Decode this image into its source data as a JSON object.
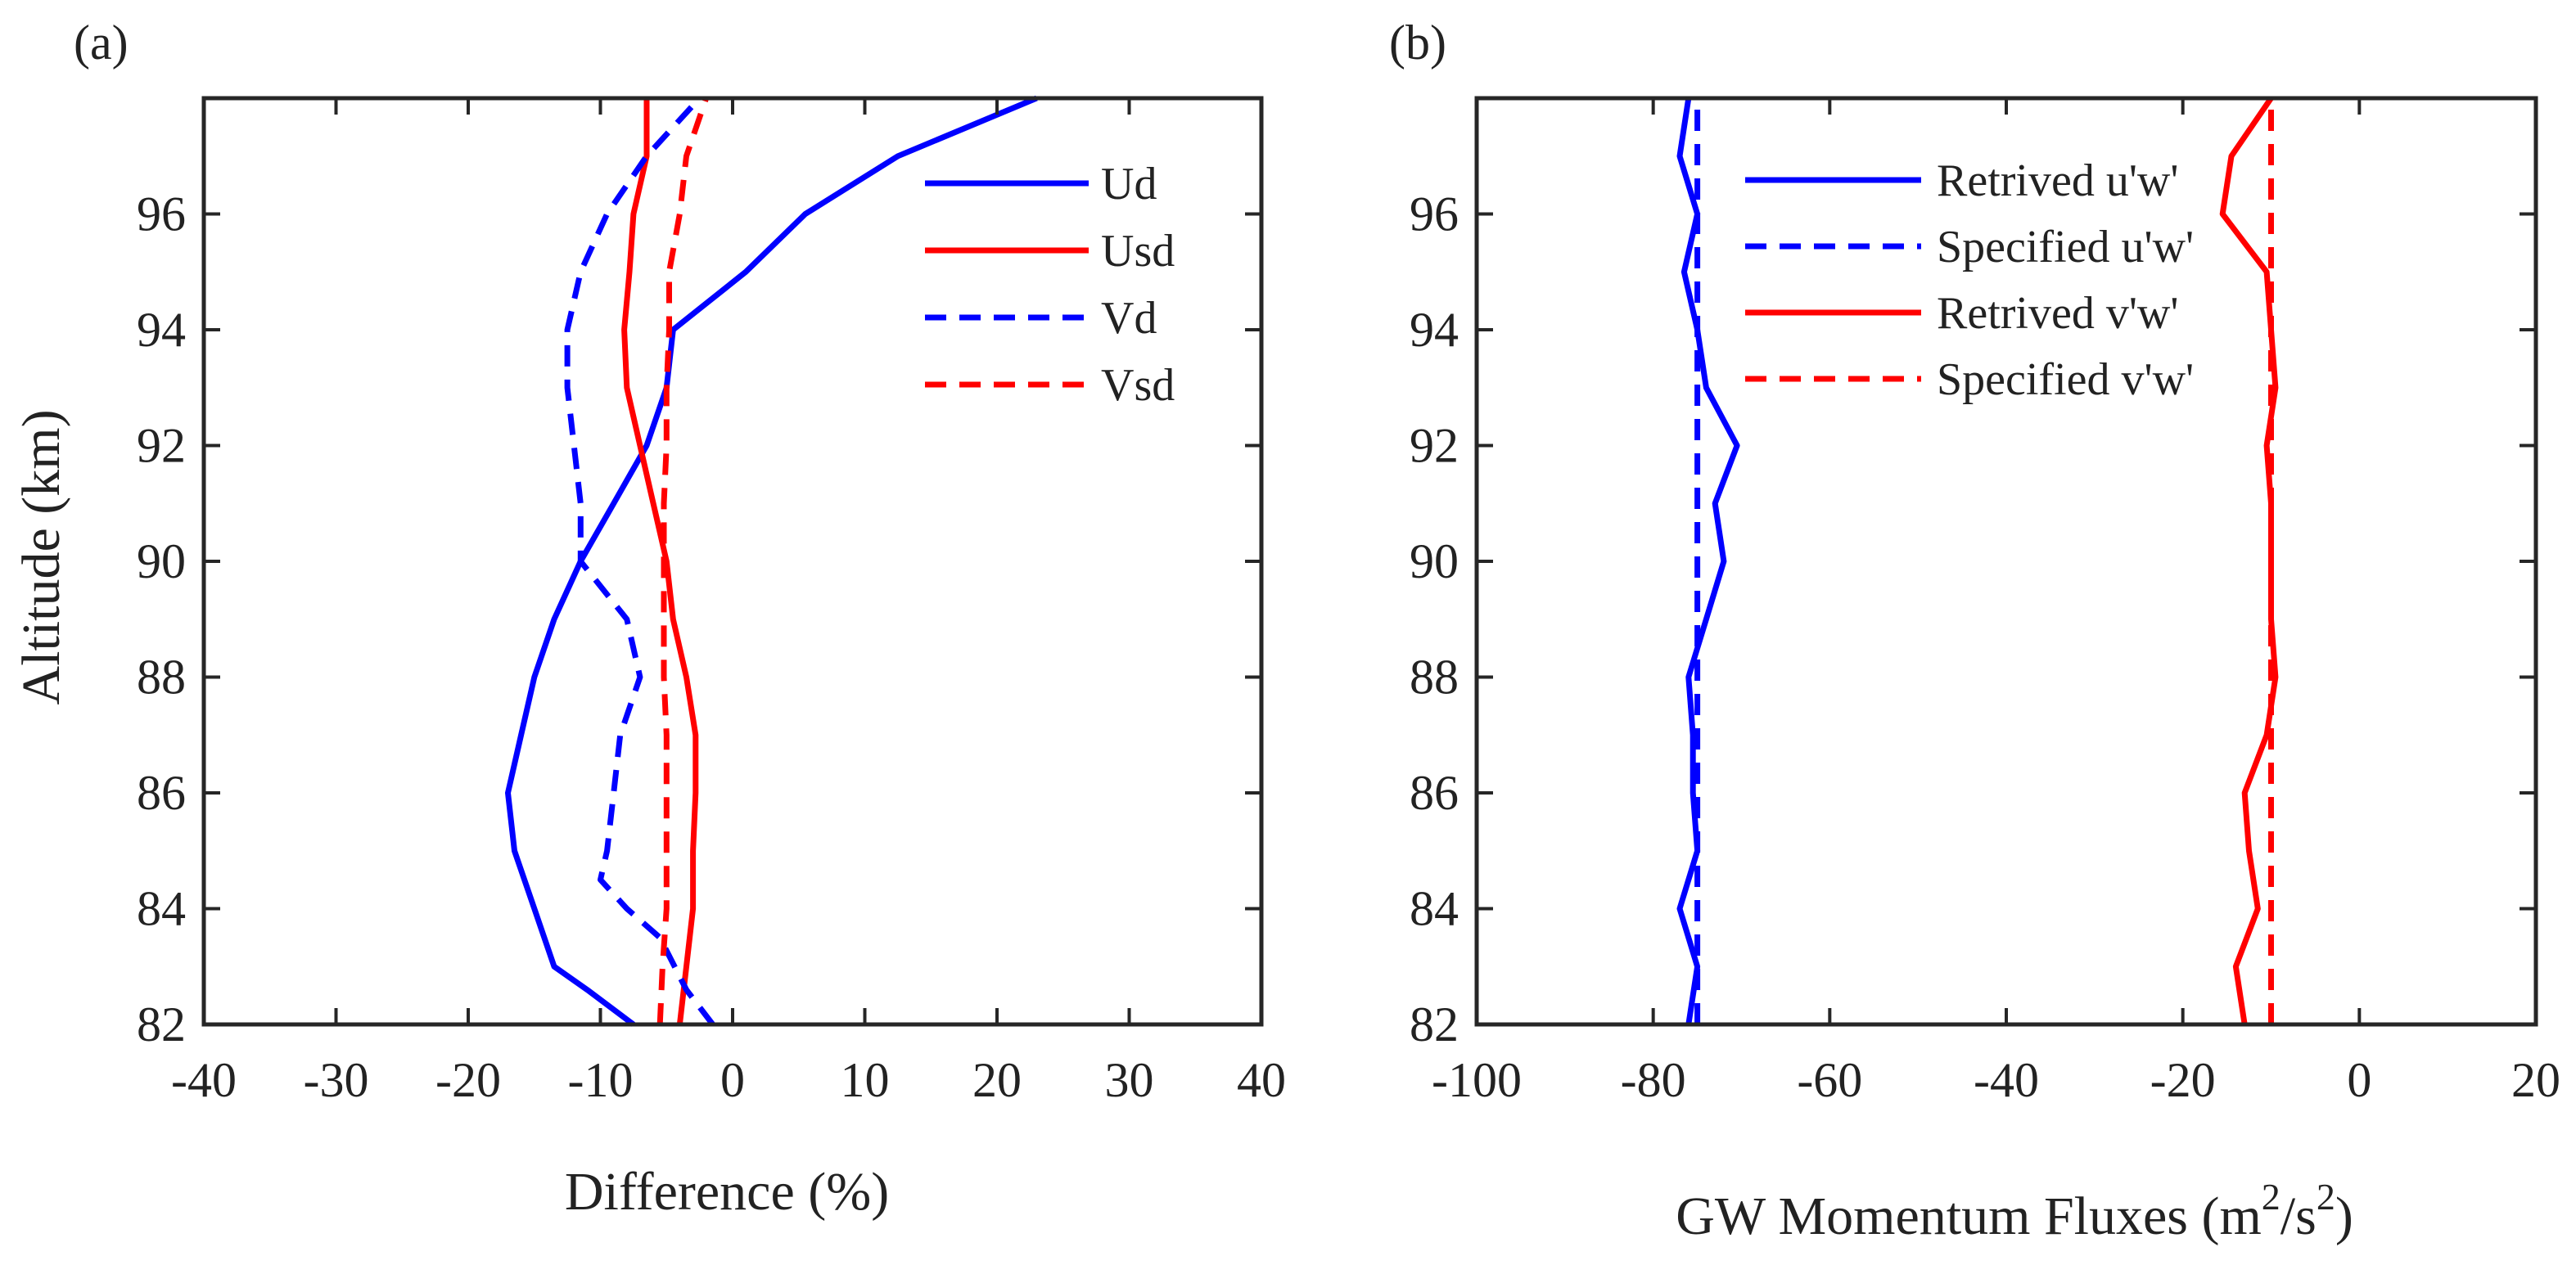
{
  "figure": {
    "shared_ylabel": "Altitude (km)"
  },
  "chart_data": [
    {
      "panel": "(a)",
      "type": "line",
      "xlabel": "Difference (%)",
      "ylabel": "Altitude (km)",
      "xlim": [
        -40,
        40
      ],
      "ylim": [
        82,
        98
      ],
      "xticks": [
        -40,
        -30,
        -20,
        -10,
        0,
        10,
        20,
        30,
        40
      ],
      "xtick_labels": [
        "-40",
        "-30",
        "-20",
        "-10",
        "0",
        "10",
        "20",
        "30",
        "40"
      ],
      "yticks": [
        82,
        84,
        86,
        88,
        90,
        92,
        94,
        96
      ],
      "ytick_labels": [
        "82",
        "84",
        "86",
        "88",
        "90",
        "92",
        "94",
        "96"
      ],
      "legend_position": "top-right",
      "grid": false,
      "series": [
        {
          "name": "Ud",
          "color": "#0000ff",
          "dash": "solid",
          "points": [
            [
              -7.5,
              82
            ],
            [
              -11,
              82.6
            ],
            [
              -13.5,
              83
            ],
            [
              -15,
              84
            ],
            [
              -16.5,
              85
            ],
            [
              -17,
              86
            ],
            [
              -16,
              87
            ],
            [
              -15,
              88
            ],
            [
              -13.5,
              89
            ],
            [
              -11.5,
              90
            ],
            [
              -9,
              91
            ],
            [
              -6.5,
              92
            ],
            [
              -5,
              93
            ],
            [
              -4.5,
              94
            ],
            [
              1,
              95
            ],
            [
              5.5,
              96
            ],
            [
              12.5,
              97
            ],
            [
              23,
              98
            ]
          ]
        },
        {
          "name": "Usd",
          "color": "#ff0000",
          "dash": "solid",
          "points": [
            [
              -4,
              82
            ],
            [
              -3.5,
              83
            ],
            [
              -3,
              84
            ],
            [
              -3,
              85
            ],
            [
              -2.8,
              86
            ],
            [
              -2.8,
              87
            ],
            [
              -3.5,
              88
            ],
            [
              -4.5,
              89
            ],
            [
              -5,
              90
            ],
            [
              -6,
              91
            ],
            [
              -7,
              92
            ],
            [
              -8,
              93
            ],
            [
              -8.2,
              94
            ],
            [
              -7.8,
              95
            ],
            [
              -7.5,
              96
            ],
            [
              -6.5,
              97
            ],
            [
              -6.5,
              98
            ]
          ]
        },
        {
          "name": "Vd",
          "color": "#0000ff",
          "dash": "dashed",
          "points": [
            [
              -1.5,
              82
            ],
            [
              -3.5,
              82.6
            ],
            [
              -5.5,
              83.5
            ],
            [
              -8,
              84
            ],
            [
              -10,
              84.5
            ],
            [
              -9.5,
              85
            ],
            [
              -9,
              86
            ],
            [
              -8.5,
              87
            ],
            [
              -7,
              88
            ],
            [
              -8,
              89
            ],
            [
              -11.5,
              90
            ],
            [
              -11.5,
              91
            ],
            [
              -12,
              92
            ],
            [
              -12.5,
              93
            ],
            [
              -12.5,
              94
            ],
            [
              -11.5,
              95
            ],
            [
              -9.5,
              96
            ],
            [
              -6.5,
              97
            ],
            [
              -2.5,
              98
            ]
          ]
        },
        {
          "name": "Vsd",
          "color": "#ff0000",
          "dash": "dashed",
          "points": [
            [
              -5.5,
              82
            ],
            [
              -5.3,
              83
            ],
            [
              -5,
              84
            ],
            [
              -5,
              85
            ],
            [
              -5,
              86
            ],
            [
              -5,
              87
            ],
            [
              -5.2,
              88
            ],
            [
              -5.2,
              89
            ],
            [
              -5.2,
              90
            ],
            [
              -5.2,
              91
            ],
            [
              -5,
              92
            ],
            [
              -5,
              93
            ],
            [
              -4.8,
              94
            ],
            [
              -4.8,
              95
            ],
            [
              -4,
              96
            ],
            [
              -3.5,
              97
            ],
            [
              -2,
              98
            ]
          ]
        }
      ]
    },
    {
      "panel": "(b)",
      "type": "line",
      "xlabel": "GW Momentum Fluxes (m",
      "xlabel_sup1": "2",
      "xlabel_mid": "/s",
      "xlabel_sup2": "2",
      "xlabel_end": ")",
      "xlim": [
        -100,
        20
      ],
      "ylim": [
        82,
        98
      ],
      "xticks": [
        -100,
        -80,
        -60,
        -40,
        -20,
        0,
        20
      ],
      "xtick_labels": [
        "-100",
        "-80",
        "-60",
        "-40",
        "-20",
        "0",
        "20"
      ],
      "yticks": [
        82,
        84,
        86,
        88,
        90,
        92,
        94,
        96
      ],
      "ytick_labels": [
        "82",
        "84",
        "86",
        "88",
        "90",
        "92",
        "94",
        "96"
      ],
      "legend_position": "top-left",
      "grid": false,
      "series": [
        {
          "name": "Retrived u'w'",
          "color": "#0000ff",
          "dash": "solid",
          "points": [
            [
              -76,
              82
            ],
            [
              -75,
              83
            ],
            [
              -77,
              84
            ],
            [
              -75,
              85
            ],
            [
              -75.5,
              86
            ],
            [
              -75.5,
              87
            ],
            [
              -76,
              88
            ],
            [
              -74,
              89
            ],
            [
              -72,
              90
            ],
            [
              -73,
              91
            ],
            [
              -70.5,
              92
            ],
            [
              -74,
              93
            ],
            [
              -75,
              94
            ],
            [
              -76.5,
              95
            ],
            [
              -75,
              96
            ],
            [
              -77,
              97
            ],
            [
              -76,
              98
            ]
          ]
        },
        {
          "name": "Specified u'w'",
          "color": "#0000ff",
          "dash": "dashed",
          "points": [
            [
              -75,
              82
            ],
            [
              -75,
              98
            ]
          ]
        },
        {
          "name": "Retrived v'w'",
          "color": "#ff0000",
          "dash": "solid",
          "points": [
            [
              -13,
              82
            ],
            [
              -14,
              83
            ],
            [
              -11.5,
              84
            ],
            [
              -12.5,
              85
            ],
            [
              -13,
              86
            ],
            [
              -10.5,
              87
            ],
            [
              -9.5,
              88
            ],
            [
              -10,
              89
            ],
            [
              -10,
              90
            ],
            [
              -10,
              91
            ],
            [
              -10.5,
              92
            ],
            [
              -9.5,
              93
            ],
            [
              -10,
              94
            ],
            [
              -10.5,
              95
            ],
            [
              -15.5,
              96
            ],
            [
              -14.5,
              97
            ],
            [
              -10,
              98
            ]
          ]
        },
        {
          "name": "Specified v'w'",
          "color": "#ff0000",
          "dash": "dashed",
          "points": [
            [
              -10,
              82
            ],
            [
              -10,
              98
            ]
          ]
        }
      ]
    }
  ]
}
